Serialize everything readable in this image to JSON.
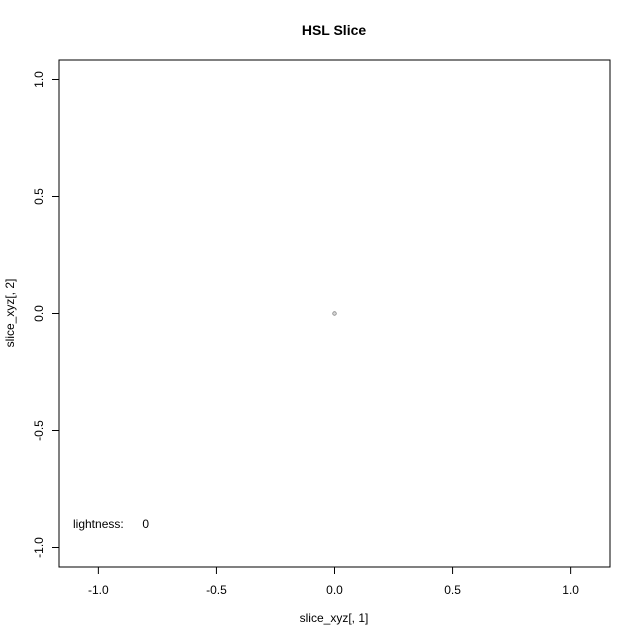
{
  "chart_data": {
    "type": "scatter",
    "title": "HSL Slice",
    "xlabel": "slice_xyz[, 1]",
    "ylabel": "slice_xyz[, 2]",
    "xlim": [
      -1.1667,
      1.1667
    ],
    "ylim": [
      -1.0833,
      1.0833
    ],
    "x_ticks": [
      -1.0,
      -0.5,
      0.0,
      0.5,
      1.0
    ],
    "x_tick_labels": [
      "-1.0",
      "-0.5",
      "0.0",
      "0.5",
      "1.0"
    ],
    "y_ticks": [
      -1.0,
      -0.5,
      0.0,
      0.5,
      1.0
    ],
    "y_tick_labels": [
      "-1.0",
      "-0.5",
      "0.0",
      "0.5",
      "1.0"
    ],
    "grid": false,
    "points": [
      {
        "x": 0.0,
        "y": 0.0,
        "color": "#888888"
      }
    ],
    "annotation": {
      "label": "lightness:",
      "value": "0",
      "x": -1.0,
      "y": -0.9
    }
  }
}
